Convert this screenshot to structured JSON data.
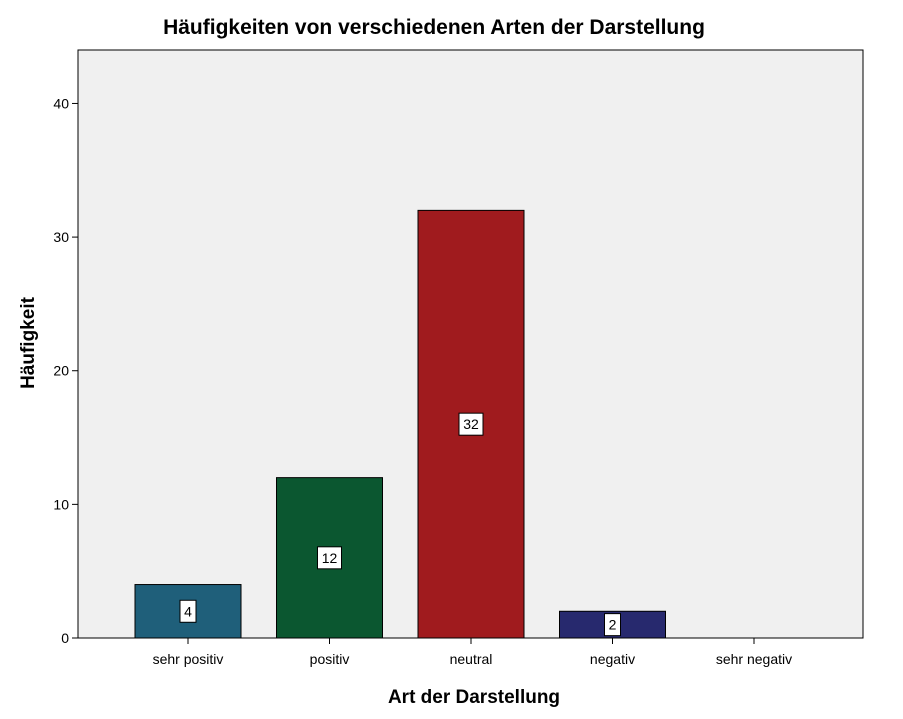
{
  "chart_data": {
    "type": "bar",
    "title": "Häufigkeiten von verschiedenen Arten der Darstellung",
    "xlabel": "Art der Darstellung",
    "ylabel": "Häufigkeit",
    "categories": [
      "sehr positiv",
      "positiv",
      "neutral",
      "negativ",
      "sehr negativ"
    ],
    "values": [
      4,
      12,
      32,
      2,
      0
    ],
    "data_labels": [
      "4",
      "12",
      "32",
      "2",
      ""
    ],
    "bar_colors": [
      "#1f5f7a",
      "#0b5730",
      "#a01b1e",
      "#27296e",
      "#808080"
    ],
    "ylim": [
      0,
      44
    ],
    "yticks": [
      0,
      10,
      20,
      30,
      40
    ],
    "grid": false,
    "plot_background": "#f0f0f0"
  }
}
